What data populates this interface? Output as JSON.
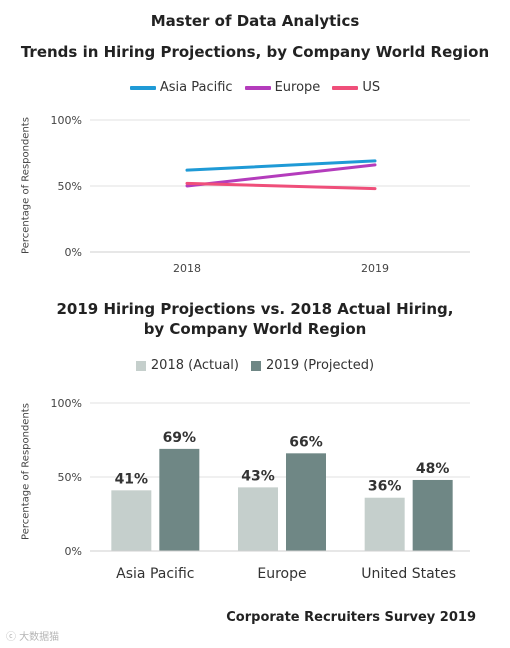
{
  "header": {
    "title": "Master of Data Analytics",
    "footer": "Corporate Recruiters Survey 2019",
    "watermark": "ⓒ 大数据猫"
  },
  "chart_data": [
    {
      "type": "line",
      "title": "Trends in Hiring Projections, by Company World Region",
      "xlabel": "",
      "ylabel": "Percentage of Respondents",
      "x": [
        "2018",
        "2019"
      ],
      "ylim": [
        0,
        100
      ],
      "yticks": [
        "0%",
        "50%",
        "100%"
      ],
      "grid": true,
      "legend": "top",
      "series": [
        {
          "name": "Asia Pacific",
          "values": [
            62,
            69
          ],
          "color": "#1f9ad6"
        },
        {
          "name": "Europe",
          "values": [
            50,
            66
          ],
          "color": "#b43cbc"
        },
        {
          "name": "US",
          "values": [
            52,
            48
          ],
          "color": "#ef4f7a"
        }
      ]
    },
    {
      "type": "bar",
      "title": "2019 Hiring Projections vs. 2018 Actual Hiring,",
      "subtitle": "by Company World Region",
      "xlabel": "",
      "ylabel": "Percentage of Respondents",
      "categories": [
        "Asia Pacific",
        "Europe",
        "United States"
      ],
      "ylim": [
        0,
        100
      ],
      "yticks": [
        "0%",
        "50%",
        "100%"
      ],
      "grid": true,
      "legend": "top",
      "series": [
        {
          "name": "2018 (Actual)",
          "values": [
            41,
            43,
            36
          ],
          "labels": [
            "41%",
            "43%",
            "36%"
          ],
          "color": "#c5cfcc"
        },
        {
          "name": "2019 (Projected)",
          "values": [
            69,
            66,
            48
          ],
          "labels": [
            "69%",
            "66%",
            "48%"
          ],
          "color": "#6f8785"
        }
      ]
    }
  ]
}
